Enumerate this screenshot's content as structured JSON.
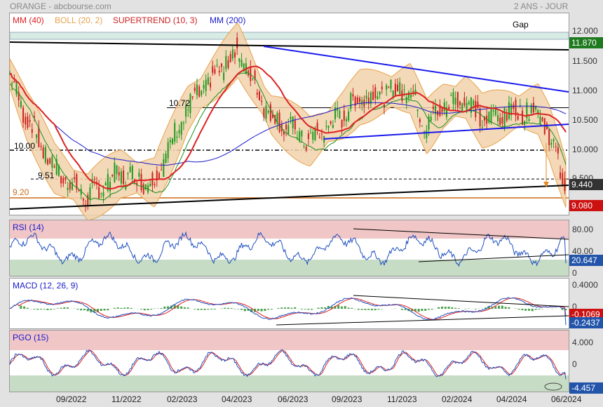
{
  "header": {
    "left": "ORANGE - abcbourse.com",
    "right": "2 ANS - JOUR"
  },
  "colors": {
    "mm40": "#dd2222",
    "boll": "#e8a24a",
    "supertrend": "#1f8f1f",
    "mm200": "#1a1acc",
    "trend_blue": "#1a1aee",
    "support": "#cc6a1a",
    "rsi_line": "#1f4fbf",
    "macd_line": "#1f4fbf",
    "macd_signal": "#dd2222",
    "hist": "#4aa04a"
  },
  "main": {
    "legend": {
      "mm": "MM (40)",
      "boll": "BOLL (20, 2)",
      "supertrend": "SUPERTREND (10, 3)",
      "mm200": "MM (200)"
    },
    "gap_label": "Gap",
    "levels": {
      "l1072": "10.72",
      "l1000": "10.00",
      "l951": "9.51",
      "l920": "9.20"
    },
    "ticks": [
      "12.000",
      "11.500",
      "11.000",
      "10.500",
      "10.000",
      "9.500"
    ],
    "tags": {
      "t11870": "11.870",
      "t9440": "9.440",
      "t9080": "9.080"
    }
  },
  "rsi": {
    "legend": "RSI (14)",
    "ticks": [
      "80.00",
      "40.00",
      "0"
    ],
    "tag": "20.647"
  },
  "macd": {
    "legend": "MACD (12, 26, 9)",
    "ticks": [
      "0.4000",
      "0"
    ],
    "tag_red": "-0.1069",
    "tag_blue": "-0.2437"
  },
  "pgo": {
    "legend": "PGO (15)",
    "ticks": [
      "4.000",
      "0"
    ],
    "tag": "-4.457"
  },
  "x_axis": {
    "labels": [
      "09/2022",
      "11/2022",
      "02/2023",
      "04/2023",
      "06/2023",
      "09/2023",
      "11/2023",
      "02/2024",
      "04/2024",
      "06/2024"
    ]
  },
  "chart_data": {
    "type": "line",
    "title": "ORANGE",
    "x_labels": [
      "09/2022",
      "11/2022",
      "02/2023",
      "04/2023",
      "06/2023",
      "09/2023",
      "11/2023",
      "02/2024",
      "04/2024",
      "06/2024"
    ],
    "price_anchors": [
      [
        0,
        11.3
      ],
      [
        0.03,
        10.6
      ],
      [
        0.08,
        9.7
      ],
      [
        0.14,
        9.2
      ],
      [
        0.2,
        9.6
      ],
      [
        0.26,
        9.45
      ],
      [
        0.32,
        10.7
      ],
      [
        0.41,
        11.7
      ],
      [
        0.47,
        10.6
      ],
      [
        0.54,
        10.15
      ],
      [
        0.6,
        10.6
      ],
      [
        0.63,
        10.9
      ],
      [
        0.72,
        11.05
      ],
      [
        0.75,
        10.4
      ],
      [
        0.78,
        10.75
      ],
      [
        0.82,
        10.9
      ],
      [
        0.85,
        10.5
      ],
      [
        0.9,
        10.65
      ],
      [
        0.95,
        10.7
      ],
      [
        0.97,
        10.3
      ],
      [
        1.0,
        9.44
      ]
    ],
    "last_values": {
      "price": 9.44,
      "rsi": 20.647,
      "macd": -0.2437,
      "macd_signal": -0.1069,
      "pgo": -4.457
    },
    "levels": [
      10.72,
      10.0,
      9.51,
      9.2
    ]
  }
}
